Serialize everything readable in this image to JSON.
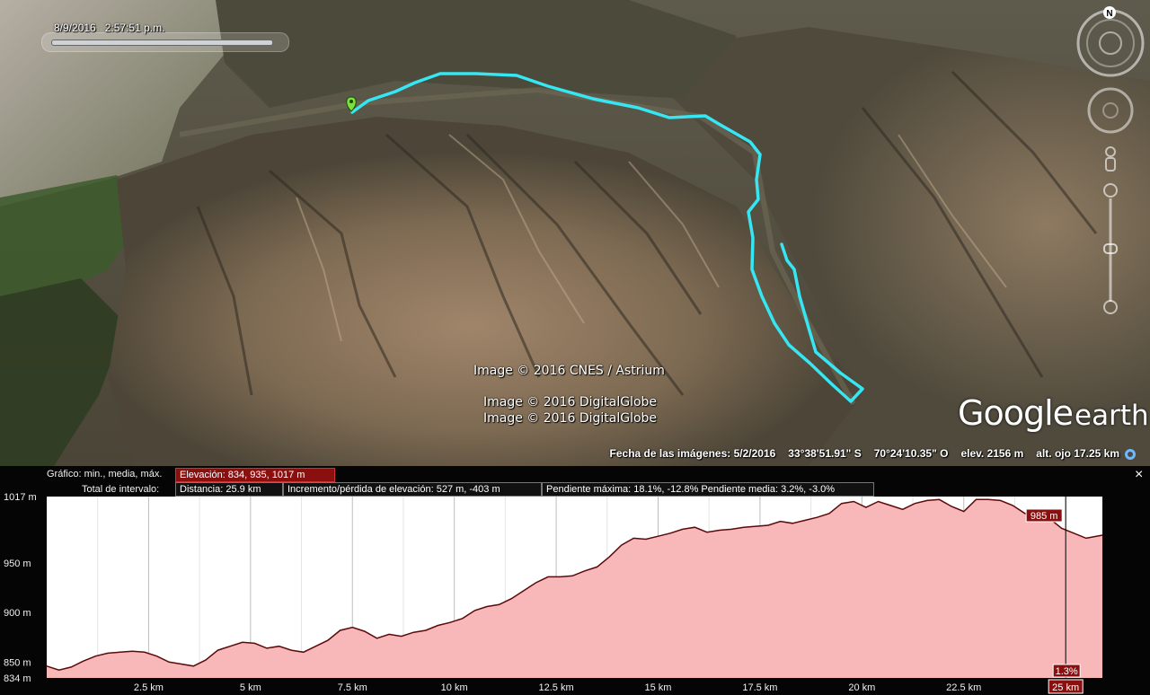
{
  "map": {
    "timestamp_date": "8/9/2016",
    "timestamp_time": "2:57:51 p.m.",
    "credits": [
      "Image © 2016 CNES / Astrium",
      "Image © 2016 DigitalGlobe",
      "Image © 2016 DigitalGlobe"
    ],
    "logo_word1": "Google",
    "logo_word2": "earth",
    "compass_label": "N",
    "status": {
      "imagery_date": "Fecha de las imágenes: 5/2/2016",
      "lat": "33°38'51.91\" S",
      "lon": "70°24'10.35\" O",
      "elev": "elev.  2156 m",
      "eye_alt": "alt. ojo  17.25 km"
    },
    "track_color": "#36e6f2"
  },
  "profile": {
    "graph_label": "Gráfico: min., media, máx.",
    "elevation_box": "Elevación: 834, 935, 1017 m",
    "range_label": "Total de intervalo:",
    "distance_box": "Distancia: 25.9 km",
    "gain_box": "Incremento/pérdida de elevación: 527 m, -403 m",
    "slope_box": "Pendiente máxima: 18.1%, -12.8% Pendiente media: 3.2%, -3.0%",
    "close_label": "×",
    "cursor_elev_label": "985 m",
    "cursor_slope_label": "1.3%",
    "cursor_dist_label": "25 km"
  },
  "chart_data": {
    "type": "area",
    "x_unit": "km",
    "y_unit": "m",
    "xlim": [
      0,
      25.9
    ],
    "ylim": [
      834,
      1017
    ],
    "y_ticks": [
      {
        "value": 1017,
        "label": "1017 m"
      },
      {
        "value": 950,
        "label": "950 m"
      },
      {
        "value": 900,
        "label": "900 m"
      },
      {
        "value": 850,
        "label": "850 m"
      },
      {
        "value": 834,
        "label": "834 m"
      }
    ],
    "x_ticks": [
      {
        "value": 2.5,
        "label": "2.5 km"
      },
      {
        "value": 5,
        "label": "5 km"
      },
      {
        "value": 7.5,
        "label": "7.5 km"
      },
      {
        "value": 10,
        "label": "10 km"
      },
      {
        "value": 12.5,
        "label": "12.5 km"
      },
      {
        "value": 15,
        "label": "15 km"
      },
      {
        "value": 17.5,
        "label": "17.5 km"
      },
      {
        "value": 20,
        "label": "20 km"
      },
      {
        "value": 22.5,
        "label": "22.5 km"
      },
      {
        "value": 25,
        "label": "25 km"
      }
    ],
    "x": [
      0,
      0.3,
      0.6,
      0.9,
      1.2,
      1.5,
      1.8,
      2.1,
      2.4,
      2.7,
      3.0,
      3.3,
      3.6,
      3.9,
      4.2,
      4.5,
      4.8,
      5.1,
      5.4,
      5.7,
      6.0,
      6.3,
      6.6,
      6.9,
      7.2,
      7.5,
      7.8,
      8.1,
      8.4,
      8.7,
      9.0,
      9.3,
      9.6,
      9.9,
      10.2,
      10.5,
      10.8,
      11.1,
      11.4,
      11.7,
      12.0,
      12.3,
      12.6,
      12.9,
      13.2,
      13.5,
      13.8,
      14.1,
      14.4,
      14.7,
      15.0,
      15.3,
      15.6,
      15.9,
      16.2,
      16.5,
      16.8,
      17.1,
      17.4,
      17.7,
      18.0,
      18.3,
      18.6,
      18.9,
      19.2,
      19.5,
      19.8,
      20.1,
      20.4,
      20.7,
      21.0,
      21.3,
      21.6,
      21.9,
      22.2,
      22.5,
      22.8,
      23.1,
      23.4,
      23.7,
      24.0,
      24.3,
      24.6,
      24.9,
      25.2,
      25.5,
      25.9
    ],
    "y": [
      846,
      842,
      845,
      851,
      856,
      859,
      860,
      861,
      860,
      856,
      850,
      848,
      846,
      852,
      862,
      866,
      870,
      869,
      864,
      866,
      862,
      860,
      866,
      872,
      882,
      885,
      881,
      874,
      878,
      876,
      880,
      882,
      887,
      890,
      894,
      902,
      906,
      908,
      914,
      922,
      930,
      936,
      936,
      937,
      942,
      946,
      956,
      968,
      975,
      974,
      977,
      980,
      984,
      986,
      981,
      983,
      984,
      986,
      987,
      988,
      992,
      990,
      993,
      996,
      1000,
      1010,
      1012,
      1006,
      1012,
      1008,
      1004,
      1010,
      1013,
      1014,
      1007,
      1002,
      1014,
      1014,
      1013,
      1008,
      1000,
      994,
      995,
      985,
      980,
      975,
      978
    ],
    "cursor_x": 25.0,
    "grid": true,
    "fill_color": "#f8b7b8",
    "line_color": "#5a0a0a"
  }
}
